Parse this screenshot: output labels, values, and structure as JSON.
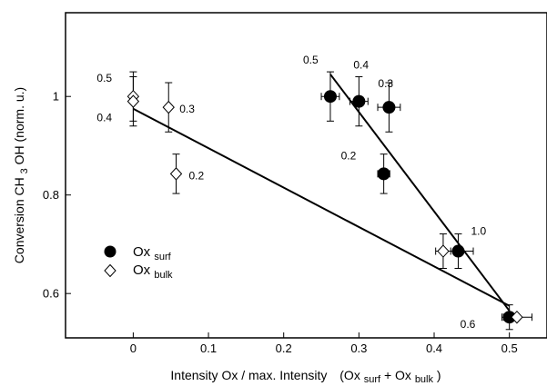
{
  "chart_data": {
    "type": "scatter",
    "xlabel": {
      "main": "Intensity Ox / max. Intensity",
      "paren_open": "(Ox",
      "sub1": "surf",
      "plus": " + Ox",
      "sub2": "bulk",
      "paren_close": ")"
    },
    "ylabel": {
      "pre": "Conversion CH",
      "sub": "3",
      "post": "OH (norm. u.)"
    },
    "xlim": [
      -0.09,
      0.55
    ],
    "ylim": [
      0.51,
      1.17
    ],
    "xticks": [
      {
        "value": 0,
        "label": "0"
      },
      {
        "value": 0.1,
        "label": "0.1"
      },
      {
        "value": 0.2,
        "label": "0.2"
      },
      {
        "value": 0.3,
        "label": "0.3"
      },
      {
        "value": 0.4,
        "label": "0.4"
      },
      {
        "value": 0.5,
        "label": "0.5"
      }
    ],
    "yticks": [
      {
        "value": 0.6,
        "label": "0.6"
      },
      {
        "value": 0.8,
        "label": "0.8"
      },
      {
        "value": 1.0,
        "label": "1"
      }
    ],
    "grid": false,
    "series": [
      {
        "name": "Ox surf",
        "marker": "filled-circle",
        "points": [
          {
            "x": 0.262,
            "y": 1.0,
            "xerr": 0.012,
            "yerr": 0.05,
            "label": "0.5"
          },
          {
            "x": 0.3,
            "y": 0.99,
            "xerr": 0.012,
            "yerr": 0.05,
            "label": "0.4"
          },
          {
            "x": 0.34,
            "y": 0.978,
            "xerr": 0.015,
            "yerr": 0.05,
            "label": "0.3"
          },
          {
            "x": 0.333,
            "y": 0.843,
            "xerr": 0.008,
            "yerr": 0.04,
            "label": "0.2"
          },
          {
            "x": 0.432,
            "y": 0.686,
            "xerr": 0.02,
            "yerr": 0.035,
            "label": "1.0"
          },
          {
            "x": 0.5,
            "y": 0.552,
            "xerr": 0.008,
            "yerr": 0.025,
            "label": "0.6"
          }
        ]
      },
      {
        "name": "Ox bulk",
        "marker": "open-diamond",
        "points": [
          {
            "x": 0.0,
            "y": 1.0,
            "xerr": 0.0,
            "yerr": 0.05,
            "label": "0.5"
          },
          {
            "x": 0.0,
            "y": 0.99,
            "xerr": 0.0,
            "yerr": 0.05,
            "label": "0.4"
          },
          {
            "x": 0.047,
            "y": 0.978,
            "xerr": 0.0,
            "yerr": 0.05,
            "label": "0.3"
          },
          {
            "x": 0.057,
            "y": 0.843,
            "xerr": 0.0,
            "yerr": 0.04,
            "label": "0.2"
          },
          {
            "x": 0.412,
            "y": 0.686,
            "xerr": 0.01,
            "yerr": 0.035,
            "label": ""
          },
          {
            "x": 0.51,
            "y": 0.552,
            "xerr": 0.02,
            "yerr": 0.0,
            "label": ""
          }
        ]
      }
    ],
    "fit_lines": [
      {
        "x1": 0.262,
        "y1": 1.045,
        "x2": 0.5,
        "y2": 0.565
      },
      {
        "x1": 0.0,
        "y1": 0.975,
        "x2": 0.5,
        "y2": 0.575
      }
    ],
    "legend": {
      "position": "lower-left",
      "entries": [
        {
          "marker": "filled-circle",
          "main": "Ox",
          "sub": "surf"
        },
        {
          "marker": "open-diamond",
          "main": "Ox",
          "sub": "bulk"
        }
      ]
    }
  }
}
